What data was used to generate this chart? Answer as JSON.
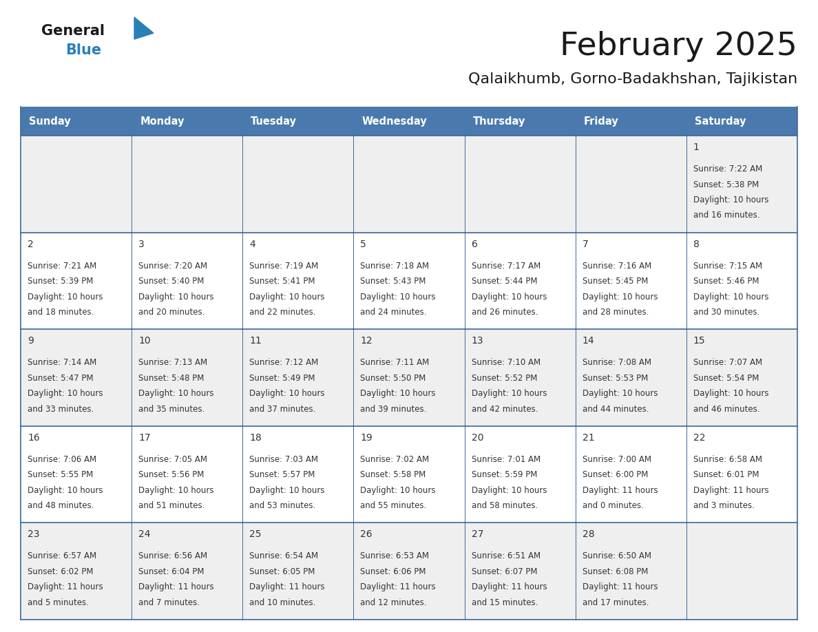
{
  "title": "February 2025",
  "subtitle": "Qalaikhumb, Gorno-Badakhshan, Tajikistan",
  "header_color": "#4a7aad",
  "header_text_color": "#ffffff",
  "days_of_week": [
    "Sunday",
    "Monday",
    "Tuesday",
    "Wednesday",
    "Thursday",
    "Friday",
    "Saturday"
  ],
  "background_color": "#ffffff",
  "row_colors": [
    "#efefef",
    "#ffffff",
    "#efefef",
    "#ffffff",
    "#efefef"
  ],
  "cell_border_color": "#3a6899",
  "day_number_color": "#333333",
  "text_color": "#333333",
  "logo_general_color": "#1a1a1a",
  "logo_blue_color": "#2980b9",
  "calendar_data": [
    [
      null,
      null,
      null,
      null,
      null,
      null,
      {
        "day": "1",
        "sunrise": "7:22 AM",
        "sunset": "5:38 PM",
        "daylight_h": "10 hours",
        "daylight_m": "and 16 minutes."
      }
    ],
    [
      {
        "day": "2",
        "sunrise": "7:21 AM",
        "sunset": "5:39 PM",
        "daylight_h": "10 hours",
        "daylight_m": "and 18 minutes."
      },
      {
        "day": "3",
        "sunrise": "7:20 AM",
        "sunset": "5:40 PM",
        "daylight_h": "10 hours",
        "daylight_m": "and 20 minutes."
      },
      {
        "day": "4",
        "sunrise": "7:19 AM",
        "sunset": "5:41 PM",
        "daylight_h": "10 hours",
        "daylight_m": "and 22 minutes."
      },
      {
        "day": "5",
        "sunrise": "7:18 AM",
        "sunset": "5:43 PM",
        "daylight_h": "10 hours",
        "daylight_m": "and 24 minutes."
      },
      {
        "day": "6",
        "sunrise": "7:17 AM",
        "sunset": "5:44 PM",
        "daylight_h": "10 hours",
        "daylight_m": "and 26 minutes."
      },
      {
        "day": "7",
        "sunrise": "7:16 AM",
        "sunset": "5:45 PM",
        "daylight_h": "10 hours",
        "daylight_m": "and 28 minutes."
      },
      {
        "day": "8",
        "sunrise": "7:15 AM",
        "sunset": "5:46 PM",
        "daylight_h": "10 hours",
        "daylight_m": "and 30 minutes."
      }
    ],
    [
      {
        "day": "9",
        "sunrise": "7:14 AM",
        "sunset": "5:47 PM",
        "daylight_h": "10 hours",
        "daylight_m": "and 33 minutes."
      },
      {
        "day": "10",
        "sunrise": "7:13 AM",
        "sunset": "5:48 PM",
        "daylight_h": "10 hours",
        "daylight_m": "and 35 minutes."
      },
      {
        "day": "11",
        "sunrise": "7:12 AM",
        "sunset": "5:49 PM",
        "daylight_h": "10 hours",
        "daylight_m": "and 37 minutes."
      },
      {
        "day": "12",
        "sunrise": "7:11 AM",
        "sunset": "5:50 PM",
        "daylight_h": "10 hours",
        "daylight_m": "and 39 minutes."
      },
      {
        "day": "13",
        "sunrise": "7:10 AM",
        "sunset": "5:52 PM",
        "daylight_h": "10 hours",
        "daylight_m": "and 42 minutes."
      },
      {
        "day": "14",
        "sunrise": "7:08 AM",
        "sunset": "5:53 PM",
        "daylight_h": "10 hours",
        "daylight_m": "and 44 minutes."
      },
      {
        "day": "15",
        "sunrise": "7:07 AM",
        "sunset": "5:54 PM",
        "daylight_h": "10 hours",
        "daylight_m": "and 46 minutes."
      }
    ],
    [
      {
        "day": "16",
        "sunrise": "7:06 AM",
        "sunset": "5:55 PM",
        "daylight_h": "10 hours",
        "daylight_m": "and 48 minutes."
      },
      {
        "day": "17",
        "sunrise": "7:05 AM",
        "sunset": "5:56 PM",
        "daylight_h": "10 hours",
        "daylight_m": "and 51 minutes."
      },
      {
        "day": "18",
        "sunrise": "7:03 AM",
        "sunset": "5:57 PM",
        "daylight_h": "10 hours",
        "daylight_m": "and 53 minutes."
      },
      {
        "day": "19",
        "sunrise": "7:02 AM",
        "sunset": "5:58 PM",
        "daylight_h": "10 hours",
        "daylight_m": "and 55 minutes."
      },
      {
        "day": "20",
        "sunrise": "7:01 AM",
        "sunset": "5:59 PM",
        "daylight_h": "10 hours",
        "daylight_m": "and 58 minutes."
      },
      {
        "day": "21",
        "sunrise": "7:00 AM",
        "sunset": "6:00 PM",
        "daylight_h": "11 hours",
        "daylight_m": "and 0 minutes."
      },
      {
        "day": "22",
        "sunrise": "6:58 AM",
        "sunset": "6:01 PM",
        "daylight_h": "11 hours",
        "daylight_m": "and 3 minutes."
      }
    ],
    [
      {
        "day": "23",
        "sunrise": "6:57 AM",
        "sunset": "6:02 PM",
        "daylight_h": "11 hours",
        "daylight_m": "and 5 minutes."
      },
      {
        "day": "24",
        "sunrise": "6:56 AM",
        "sunset": "6:04 PM",
        "daylight_h": "11 hours",
        "daylight_m": "and 7 minutes."
      },
      {
        "day": "25",
        "sunrise": "6:54 AM",
        "sunset": "6:05 PM",
        "daylight_h": "11 hours",
        "daylight_m": "and 10 minutes."
      },
      {
        "day": "26",
        "sunrise": "6:53 AM",
        "sunset": "6:06 PM",
        "daylight_h": "11 hours",
        "daylight_m": "and 12 minutes."
      },
      {
        "day": "27",
        "sunrise": "6:51 AM",
        "sunset": "6:07 PM",
        "daylight_h": "11 hours",
        "daylight_m": "and 15 minutes."
      },
      {
        "day": "28",
        "sunrise": "6:50 AM",
        "sunset": "6:08 PM",
        "daylight_h": "11 hours",
        "daylight_m": "and 17 minutes."
      },
      null
    ]
  ]
}
